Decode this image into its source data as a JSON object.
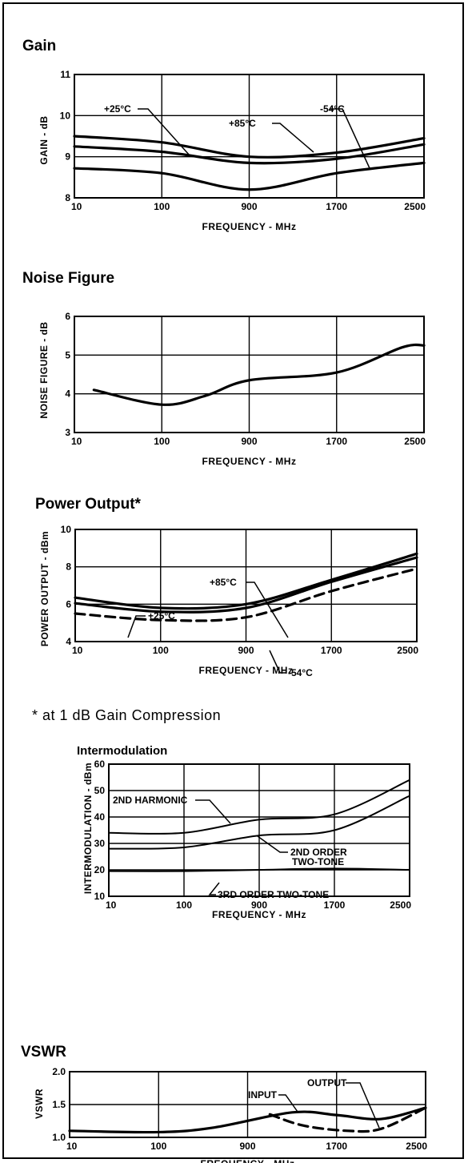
{
  "chart_data": [
    {
      "id": "gain",
      "type": "line",
      "title": "Gain",
      "xlabel": "FREQUENCY - MHz",
      "ylabel": "GAIN - dB",
      "x": [
        10,
        100,
        900,
        1700,
        2500
      ],
      "x_tick_labels": [
        "10",
        "100",
        "900",
        "1700",
        "2500"
      ],
      "y_ticks": [
        8,
        9,
        10,
        11
      ],
      "ylim": [
        8,
        11
      ],
      "grid": true,
      "series": [
        {
          "name": "+25°C",
          "line": "solid",
          "values": [
            9.25,
            9.12,
            8.85,
            8.95,
            9.3
          ]
        },
        {
          "name": "+85°C",
          "line": "solid",
          "values": [
            8.72,
            8.6,
            8.2,
            8.6,
            8.85
          ]
        },
        {
          "name": "-54°C",
          "line": "solid",
          "values": [
            9.5,
            9.35,
            9.0,
            9.1,
            9.45
          ]
        }
      ],
      "annotations": [
        {
          "text": "+25°C"
        },
        {
          "text": "+85°C"
        },
        {
          "text": "-54°C"
        }
      ]
    },
    {
      "id": "noise",
      "type": "line",
      "title": "Noise Figure",
      "xlabel": "FREQUENCY - MHz",
      "ylabel": "NOISE FIGURE - dB",
      "x": [
        10,
        100,
        900,
        1700,
        2500
      ],
      "x_tick_labels": [
        "10",
        "100",
        "900",
        "1700",
        "2500"
      ],
      "y_ticks": [
        3,
        4,
        5,
        6
      ],
      "ylim": [
        3,
        6
      ],
      "grid": true,
      "series": [
        {
          "name": "",
          "line": "solid",
          "x": [
            30,
            100,
            500,
            900,
            1700,
            2300,
            2500
          ],
          "values": [
            4.1,
            3.72,
            3.95,
            4.35,
            4.55,
            5.2,
            5.25
          ]
        }
      ],
      "annotations": []
    },
    {
      "id": "power",
      "type": "line",
      "title": "Power Output*",
      "xlabel": "FREQUENCY - MHz",
      "ylabel": "POWER OUTPUT - dBm",
      "x": [
        10,
        100,
        900,
        1700,
        2500
      ],
      "x_tick_labels": [
        "10",
        "100",
        "900",
        "1700",
        "2500"
      ],
      "y_ticks": [
        4,
        6,
        8,
        10
      ],
      "ylim": [
        4,
        10
      ],
      "grid": true,
      "series": [
        {
          "name": "+25°C",
          "line": "solid",
          "values": [
            6.35,
            5.8,
            6.0,
            7.3,
            8.7
          ]
        },
        {
          "name": "+85°C",
          "line": "solid",
          "values": [
            6.05,
            5.6,
            5.8,
            7.2,
            8.5
          ]
        },
        {
          "name": "-54°C",
          "line": "dashed",
          "values": [
            5.5,
            5.15,
            5.3,
            6.7,
            7.9
          ]
        }
      ],
      "annotations": [
        {
          "text": "+25°C"
        },
        {
          "text": "+85°C"
        },
        {
          "text": "-54°C"
        }
      ],
      "footnote": "* at 1 dB Gain Compression"
    },
    {
      "id": "imod",
      "type": "line",
      "title": "Intermodulation",
      "xlabel": "FREQUENCY - MHz",
      "ylabel": "INTERMODULATION - dBm",
      "x": [
        10,
        100,
        900,
        1700,
        2500
      ],
      "x_tick_labels": [
        "10",
        "100",
        "900",
        "1700",
        "2500"
      ],
      "y_ticks": [
        10,
        20,
        30,
        40,
        50,
        60
      ],
      "ylim": [
        10,
        60
      ],
      "grid": true,
      "series": [
        {
          "name": "2ND HARMONIC",
          "line": "solid",
          "values": [
            34,
            34,
            39,
            41,
            54
          ]
        },
        {
          "name": "2ND ORDER TWO-TONE",
          "line": "solid",
          "values": [
            28,
            28.5,
            33,
            35,
            48
          ]
        },
        {
          "name": "3RD ORDER TWO-TONE",
          "line": "solid",
          "values": [
            19.5,
            19.5,
            20,
            20.5,
            20
          ]
        }
      ],
      "annotations": [
        {
          "text": "2ND HARMONIC"
        },
        {
          "text": "2ND ORDER"
        },
        {
          "text": "TWO-TONE"
        },
        {
          "text": "3RD ORDER TWO-TONE"
        }
      ]
    },
    {
      "id": "vswr",
      "type": "line",
      "title": "VSWR",
      "xlabel": "FREQUENCY - MHz",
      "ylabel": "VSWR",
      "x": [
        10,
        100,
        900,
        1700,
        2500
      ],
      "x_tick_labels": [
        "10",
        "100",
        "900",
        "1700",
        "2500"
      ],
      "y_ticks": [
        1.0,
        1.5,
        2.0
      ],
      "y_tick_labels": [
        "1.0",
        "1.5",
        "2.0"
      ],
      "ylim": [
        1.0,
        2.0
      ],
      "grid": true,
      "series": [
        {
          "name": "INPUT",
          "line": "solid",
          "x": [
            10,
            100,
            600,
            1300,
            1700,
            2100,
            2500
          ],
          "values": [
            1.1,
            1.08,
            1.15,
            1.38,
            1.34,
            1.28,
            1.45
          ]
        },
        {
          "name": "OUTPUT",
          "line": "dashed",
          "x": [
            1100,
            1400,
            1800,
            2100,
            2500
          ],
          "values": [
            1.35,
            1.18,
            1.1,
            1.13,
            1.45
          ]
        }
      ],
      "annotations": [
        {
          "text": "INPUT"
        },
        {
          "text": "OUTPUT"
        }
      ]
    }
  ]
}
